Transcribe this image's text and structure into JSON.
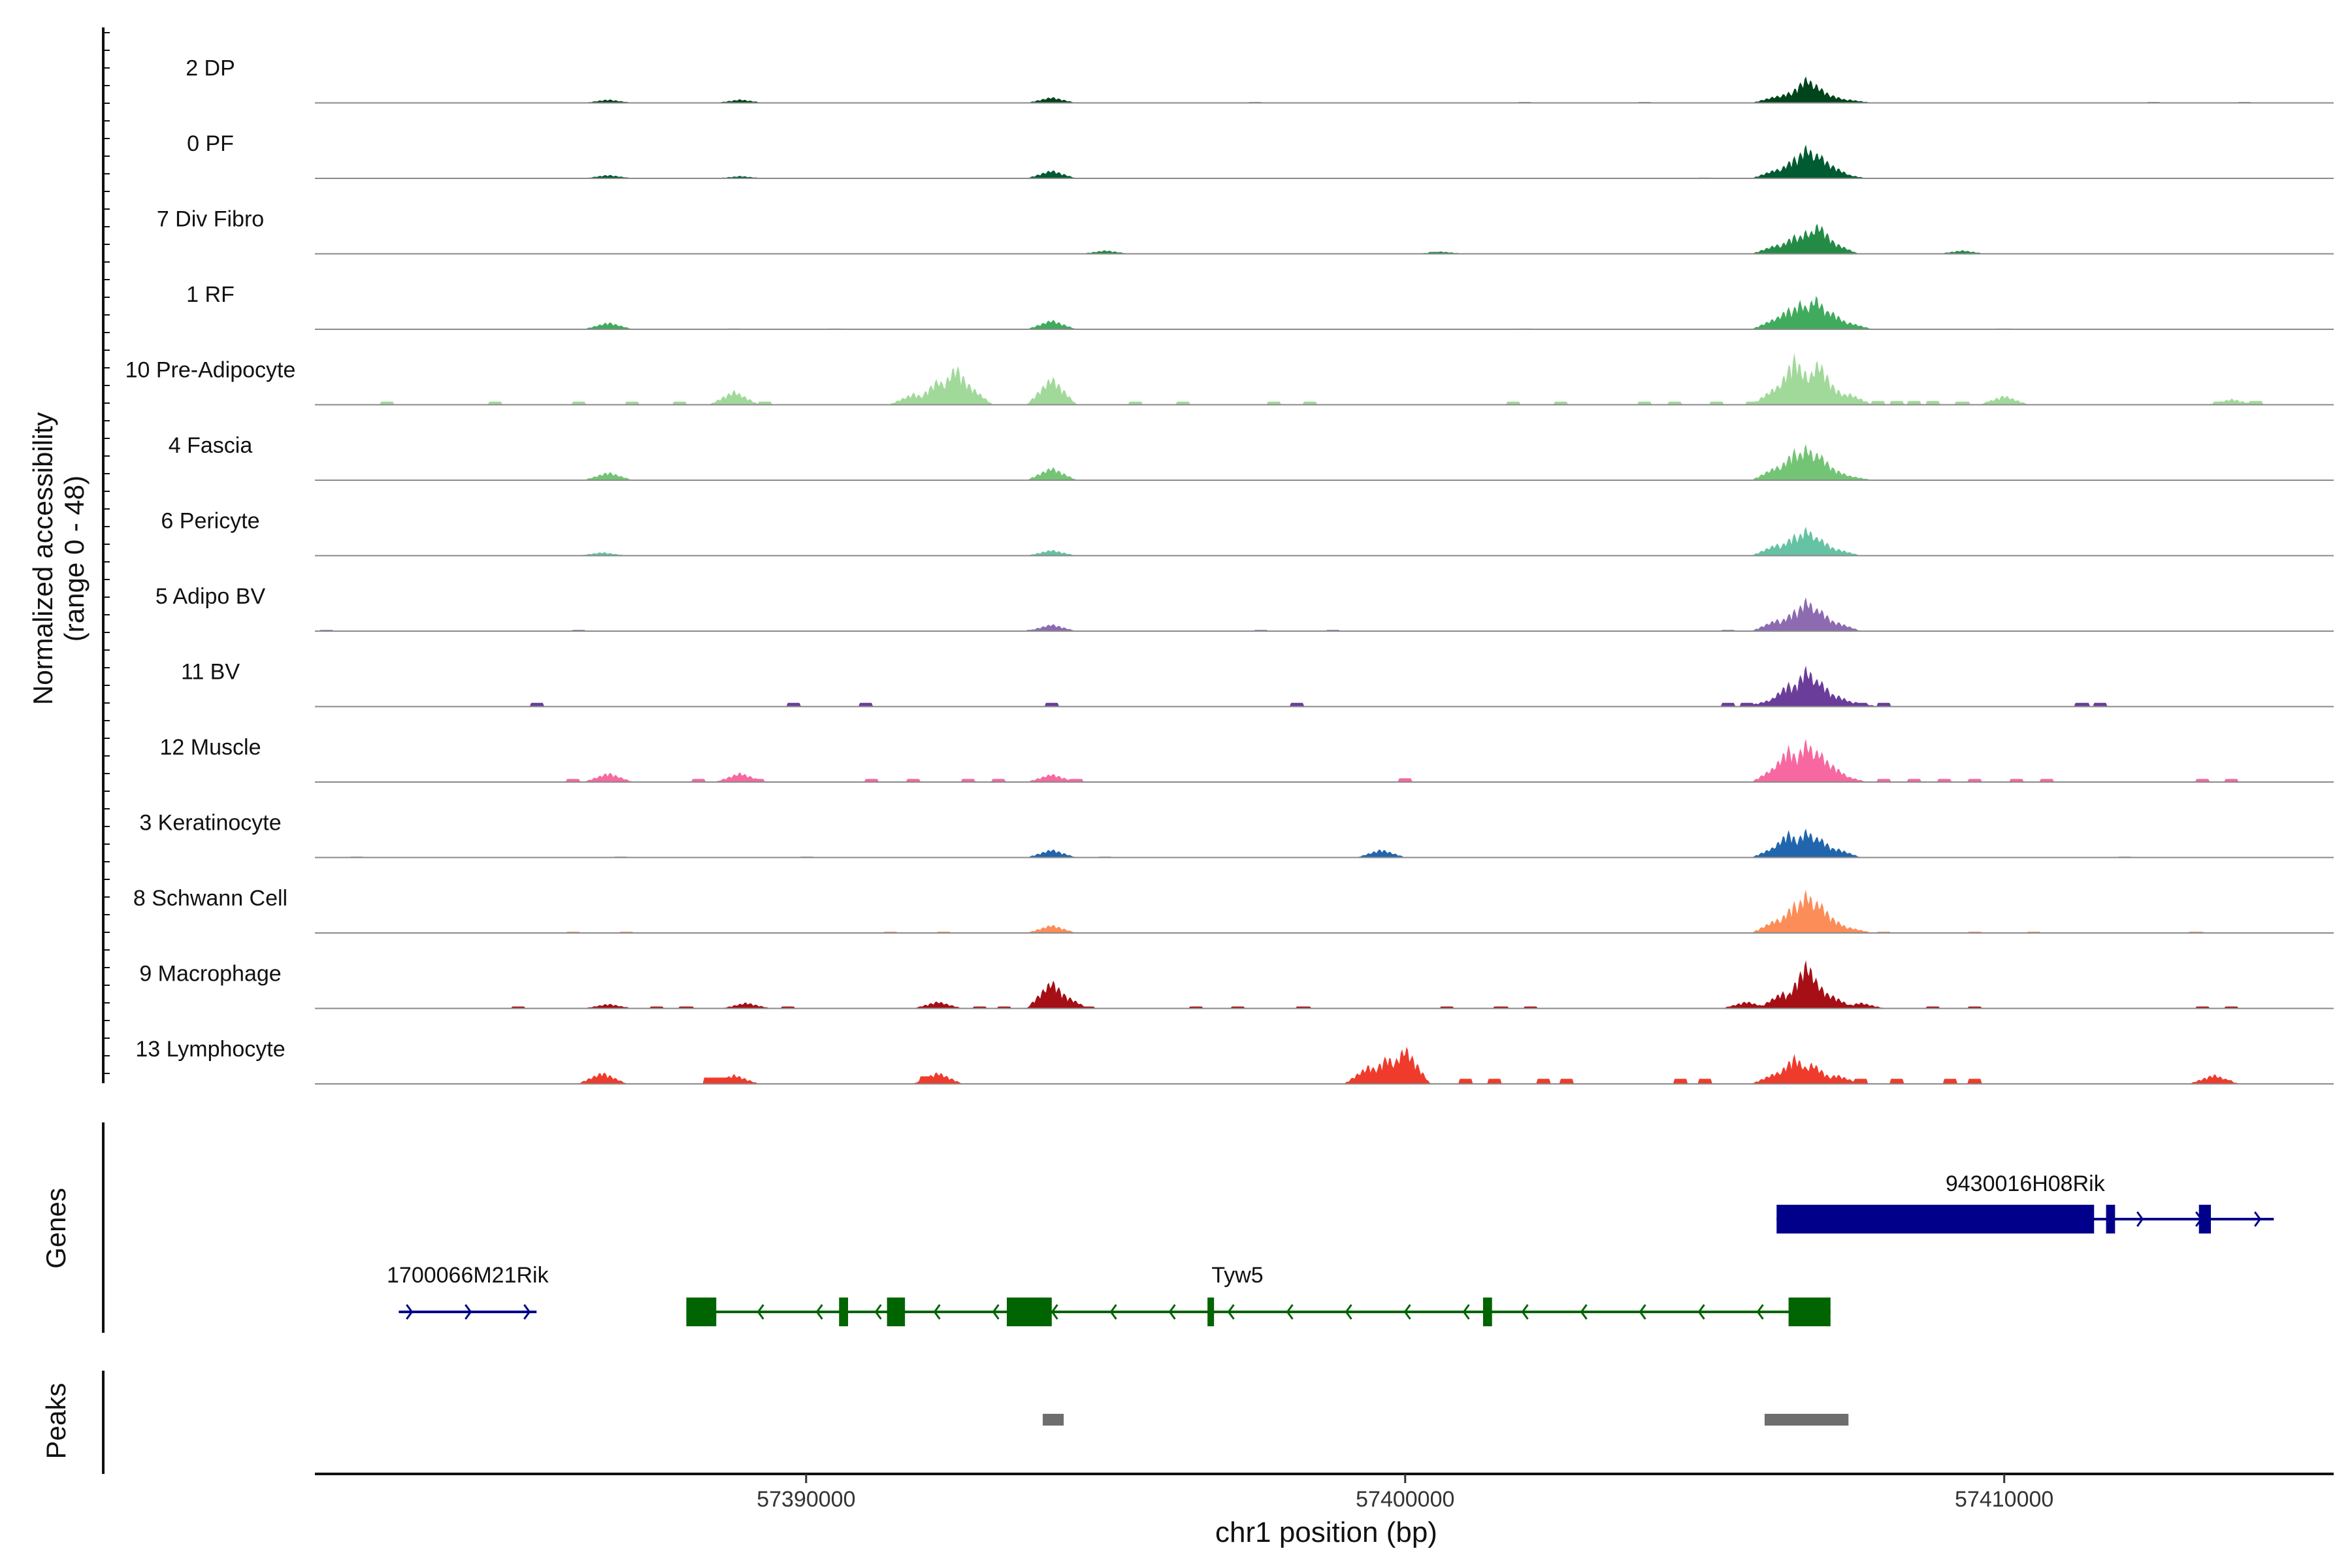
{
  "chart_data": {
    "type": "area",
    "ylabel": "Normalized accessibility",
    "ylabel_range": "(range 0 - 48)",
    "ylim": [
      0,
      48
    ],
    "xlabel": "chr1 position (bp)",
    "xlim": [
      57381800,
      57415500
    ],
    "x_ticks": [
      57390000,
      57400000,
      57410000
    ],
    "x_tick_labels": [
      "57390000",
      "57400000",
      "57410000"
    ],
    "grid": false,
    "legend": "none",
    "series": [
      {
        "name": "2 DP",
        "color": "#00441b",
        "points": [
          [
            57386700,
            3
          ],
          [
            57388900,
            3
          ],
          [
            57394100,
            5
          ],
          [
            57406200,
            6
          ],
          [
            57406400,
            9
          ],
          [
            57406700,
            22
          ],
          [
            57406850,
            16
          ],
          [
            57407100,
            7
          ],
          [
            57407400,
            3
          ]
        ],
        "bins": [
          [
            57397500,
            0.6
          ],
          [
            57402000,
            0.6
          ],
          [
            57404000,
            0.6
          ],
          [
            57412500,
            0.6
          ],
          [
            57414000,
            0.6
          ]
        ]
      },
      {
        "name": "0 PF",
        "color": "#005a32",
        "points": [
          [
            57386700,
            3
          ],
          [
            57388900,
            2
          ],
          [
            57394100,
            7
          ],
          [
            57406200,
            8
          ],
          [
            57406500,
            18
          ],
          [
            57406700,
            28
          ],
          [
            57406900,
            22
          ],
          [
            57407100,
            12
          ],
          [
            57407300,
            4
          ]
        ],
        "bins": [
          [
            57387000,
            0.5
          ],
          [
            57405000,
            0.6
          ],
          [
            57412000,
            0.5
          ]
        ]
      },
      {
        "name": "7 Div Fibro",
        "color": "#238b45",
        "points": [
          [
            57395000,
            3
          ],
          [
            57400600,
            2
          ],
          [
            57406200,
            8
          ],
          [
            57406500,
            16
          ],
          [
            57406700,
            20
          ],
          [
            57406900,
            26
          ],
          [
            57407150,
            10
          ],
          [
            57409300,
            3
          ]
        ],
        "bins": [
          [
            57395000,
            1.5
          ],
          [
            57400500,
            1.5
          ],
          [
            57409300,
            1.5
          ]
        ]
      },
      {
        "name": "1 RF",
        "color": "#41ab5d",
        "points": [
          [
            57386700,
            6
          ],
          [
            57394100,
            8
          ],
          [
            57406200,
            10
          ],
          [
            57406400,
            18
          ],
          [
            57406600,
            24
          ],
          [
            57406850,
            28
          ],
          [
            57407100,
            16
          ],
          [
            57407400,
            6
          ]
        ],
        "bins": [
          [
            57388800,
            0.6
          ],
          [
            57390500,
            0.6
          ],
          [
            57402000,
            0.6
          ],
          [
            57410000,
            0.6
          ]
        ]
      },
      {
        "name": "10 Pre-Adipocyte",
        "color": "#a1d99b",
        "points": [
          [
            57388800,
            12
          ],
          [
            57391800,
            10
          ],
          [
            57392200,
            22
          ],
          [
            57392500,
            34
          ],
          [
            57392700,
            18
          ],
          [
            57394100,
            24
          ],
          [
            57406200,
            16
          ],
          [
            57406500,
            42
          ],
          [
            57406650,
            30
          ],
          [
            57406900,
            38
          ],
          [
            57407100,
            18
          ],
          [
            57407400,
            10
          ],
          [
            57410000,
            8
          ],
          [
            57413800,
            5
          ]
        ],
        "bins": [
          [
            57383000,
            2.5
          ],
          [
            57384800,
            2.5
          ],
          [
            57386200,
            2.5
          ],
          [
            57387100,
            2.5
          ],
          [
            57387900,
            2.5
          ],
          [
            57389300,
            2.5
          ],
          [
            57395500,
            2.5
          ],
          [
            57396300,
            2.5
          ],
          [
            57397800,
            2.5
          ],
          [
            57398400,
            2.5
          ],
          [
            57401800,
            2.5
          ],
          [
            57402600,
            2.5
          ],
          [
            57404000,
            2.5
          ],
          [
            57404500,
            2.5
          ],
          [
            57405200,
            2.5
          ],
          [
            57405800,
            2.5
          ],
          [
            57407900,
            3
          ],
          [
            57408200,
            3
          ],
          [
            57408500,
            3
          ],
          [
            57408800,
            3
          ],
          [
            57409300,
            2.5
          ],
          [
            57409800,
            2.5
          ],
          [
            57413600,
            2.5
          ],
          [
            57414200,
            3
          ]
        ]
      },
      {
        "name": "4 Fascia",
        "color": "#74c476",
        "points": [
          [
            57386700,
            7
          ],
          [
            57394100,
            11
          ],
          [
            57406200,
            12
          ],
          [
            57406500,
            26
          ],
          [
            57406700,
            30
          ],
          [
            57406900,
            24
          ],
          [
            57407150,
            10
          ],
          [
            57407400,
            4
          ]
        ],
        "bins": [
          [
            57388900,
            0.5
          ],
          [
            57402000,
            0.5
          ]
        ]
      },
      {
        "name": "6 Pericyte",
        "color": "#66c2a4",
        "points": [
          [
            57386600,
            3
          ],
          [
            57394100,
            5
          ],
          [
            57406200,
            10
          ],
          [
            57406500,
            18
          ],
          [
            57406700,
            24
          ],
          [
            57406900,
            16
          ],
          [
            57407200,
            6
          ]
        ],
        "bins": [
          [
            57386900,
            0.5
          ],
          [
            57398400,
            0.5
          ],
          [
            57411000,
            0.5
          ]
        ]
      },
      {
        "name": "5 Adipo BV",
        "color": "#8c6bb1",
        "points": [
          [
            57394100,
            6
          ],
          [
            57406200,
            10
          ],
          [
            57406500,
            18
          ],
          [
            57406700,
            28
          ],
          [
            57406900,
            20
          ],
          [
            57407200,
            8
          ]
        ],
        "bins": [
          [
            57382000,
            1
          ],
          [
            57386200,
            1
          ],
          [
            57393800,
            1
          ],
          [
            57397600,
            1
          ],
          [
            57398800,
            1
          ],
          [
            57405400,
            1
          ]
        ]
      },
      {
        "name": "11 BV",
        "color": "#6a3d9a",
        "points": [
          [
            57406100,
            6
          ],
          [
            57406400,
            20
          ],
          [
            57406700,
            34
          ],
          [
            57406900,
            24
          ],
          [
            57407200,
            10
          ],
          [
            57407500,
            4
          ]
        ],
        "bins": [
          [
            57385500,
            3
          ],
          [
            57389800,
            3
          ],
          [
            57391000,
            3
          ],
          [
            57394100,
            3
          ],
          [
            57398200,
            3
          ],
          [
            57405400,
            3
          ],
          [
            57405700,
            3
          ],
          [
            57407600,
            3
          ],
          [
            57408000,
            3
          ],
          [
            57411300,
            3
          ],
          [
            57411600,
            3
          ]
        ]
      },
      {
        "name": "12 Muscle",
        "color": "#f768a1",
        "points": [
          [
            57386700,
            8
          ],
          [
            57388900,
            8
          ],
          [
            57394100,
            7
          ],
          [
            57406200,
            14
          ],
          [
            57406400,
            30
          ],
          [
            57406700,
            36
          ],
          [
            57406900,
            28
          ],
          [
            57407100,
            16
          ],
          [
            57407300,
            6
          ]
        ],
        "bins": [
          [
            57386100,
            2.5
          ],
          [
            57388200,
            2.5
          ],
          [
            57389200,
            2.5
          ],
          [
            57391100,
            2.5
          ],
          [
            57391800,
            2.5
          ],
          [
            57392700,
            2.5
          ],
          [
            57393200,
            2.5
          ],
          [
            57394500,
            2.5
          ],
          [
            57400000,
            3
          ],
          [
            57408000,
            2.5
          ],
          [
            57408500,
            2.5
          ],
          [
            57409000,
            2.5
          ],
          [
            57409500,
            2.5
          ],
          [
            57410200,
            2.5
          ],
          [
            57410700,
            2.5
          ],
          [
            57413300,
            2.5
          ],
          [
            57413800,
            2.5
          ]
        ]
      },
      {
        "name": "3 Keratinocyte",
        "color": "#2166ac",
        "points": [
          [
            57394100,
            7
          ],
          [
            57399600,
            7
          ],
          [
            57406200,
            10
          ],
          [
            57406400,
            22
          ],
          [
            57406700,
            24
          ],
          [
            57406900,
            18
          ],
          [
            57407200,
            8
          ]
        ],
        "bins": [
          [
            57382500,
            0.6
          ],
          [
            57386900,
            0.6
          ],
          [
            57390000,
            0.6
          ],
          [
            57395000,
            0.6
          ],
          [
            57412000,
            0.6
          ]
        ]
      },
      {
        "name": "8 Schwann Cell",
        "color": "#fc8d59",
        "points": [
          [
            57394100,
            7
          ],
          [
            57406200,
            12
          ],
          [
            57406500,
            26
          ],
          [
            57406700,
            36
          ],
          [
            57406900,
            28
          ],
          [
            57407100,
            14
          ],
          [
            57407400,
            5
          ]
        ],
        "bins": [
          [
            57386100,
            1
          ],
          [
            57387000,
            1
          ],
          [
            57391400,
            1
          ],
          [
            57392300,
            1
          ],
          [
            57408000,
            1
          ],
          [
            57409500,
            1
          ],
          [
            57410500,
            1
          ],
          [
            57413200,
            1
          ]
        ]
      },
      {
        "name": "9 Macrophage",
        "color": "#a50f15",
        "points": [
          [
            57386700,
            4
          ],
          [
            57389000,
            5
          ],
          [
            57392200,
            6
          ],
          [
            57394100,
            24
          ],
          [
            57394300,
            12
          ],
          [
            57405700,
            6
          ],
          [
            57406300,
            14
          ],
          [
            57406700,
            40
          ],
          [
            57406850,
            24
          ],
          [
            57407100,
            12
          ],
          [
            57407600,
            5
          ]
        ],
        "bins": [
          [
            57385200,
            1.5
          ],
          [
            57387500,
            1.5
          ],
          [
            57388000,
            1.5
          ],
          [
            57389700,
            1.5
          ],
          [
            57392900,
            1.5
          ],
          [
            57393300,
            1.5
          ],
          [
            57394700,
            1.5
          ],
          [
            57396500,
            1.5
          ],
          [
            57397200,
            1.5
          ],
          [
            57398300,
            1.5
          ],
          [
            57400700,
            1.5
          ],
          [
            57401600,
            1.5
          ],
          [
            57402100,
            1.5
          ],
          [
            57408800,
            1.5
          ],
          [
            57409500,
            1.5
          ],
          [
            57413300,
            1.5
          ],
          [
            57413800,
            1.5
          ]
        ]
      },
      {
        "name": "13 Lymphocyte",
        "color": "#ef3b2c",
        "points": [
          [
            57386600,
            10
          ],
          [
            57388800,
            8
          ],
          [
            57392200,
            10
          ],
          [
            57399400,
            16
          ],
          [
            57399700,
            24
          ],
          [
            57400000,
            32
          ],
          [
            57406200,
            10
          ],
          [
            57406500,
            24
          ],
          [
            57406800,
            18
          ],
          [
            57407200,
            8
          ],
          [
            57413500,
            8
          ]
        ],
        "bins": [
          [
            57388400,
            5
          ],
          [
            57388600,
            5
          ],
          [
            57392000,
            6
          ],
          [
            57401000,
            4
          ],
          [
            57401500,
            4
          ],
          [
            57402300,
            4
          ],
          [
            57402700,
            4
          ],
          [
            57404600,
            4
          ],
          [
            57405000,
            4
          ],
          [
            57407600,
            4
          ],
          [
            57408200,
            4
          ],
          [
            57409100,
            4
          ],
          [
            57409500,
            4
          ],
          [
            57413700,
            3
          ]
        ]
      }
    ],
    "genes": [
      {
        "name": "1700066M21Rik",
        "strand": "+",
        "start": 57383200,
        "end": 57385500,
        "color": "#00008b",
        "exons": []
      },
      {
        "name": "9430016H08Rik",
        "strand": "+",
        "start": 57406200,
        "end": 57414500,
        "color": "#00008b",
        "exons": [
          [
            57406200,
            57411500
          ],
          [
            57411700,
            57411850
          ],
          [
            57413250,
            57413450
          ]
        ]
      },
      {
        "name": "Tyw5",
        "strand": "-",
        "start": 57388000,
        "end": 57407100,
        "color": "#006400",
        "exons": [
          [
            57388000,
            57388500
          ],
          [
            57390550,
            57390700
          ],
          [
            57391350,
            57391650
          ],
          [
            57393350,
            57394100
          ],
          [
            57396700,
            57396760
          ],
          [
            57401300,
            57401450
          ],
          [
            57406400,
            57407100
          ]
        ]
      }
    ],
    "peaks": [
      [
        57393950,
        57394300
      ],
      [
        57406000,
        57407400
      ]
    ],
    "peak_color": "#6e6e6e",
    "panel_labels": {
      "genes": "Genes",
      "peaks": "Peaks"
    }
  }
}
